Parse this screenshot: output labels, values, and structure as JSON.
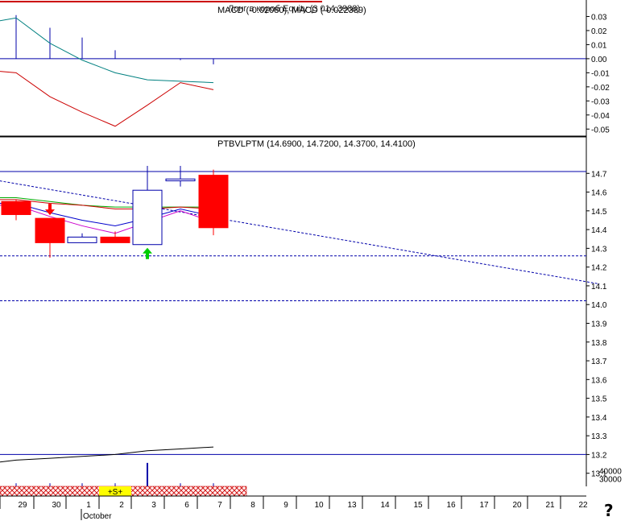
{
  "charts": {
    "macd_title": "MACD (-0.02080), MACD (-0.022389)",
    "overlay_title": "Лонг в короб Equity (3 014.3988)",
    "price_title": "PTBVLPTM (14.6900, 14.7200, 14.3700, 14.4100)",
    "signal_label": "+S+",
    "month_label": "October"
  },
  "help_glyph": "?",
  "colors": {
    "up": "#ffffff",
    "down": "#ff0000",
    "outline": "#0000aa",
    "hline": "#0000aa",
    "macd": "#008080",
    "signal": "#cc0000",
    "ma_green": "#00aa00",
    "ma_red": "#cc0000",
    "ma_blue": "#0000cc",
    "ma_magenta": "#cc00cc",
    "equity": "#000000",
    "band": "#ffeeee",
    "hatch": "#cc0000",
    "highlight": "#ffff00"
  },
  "chart_data": [
    {
      "type": "bar+line",
      "name": "MACD panel",
      "x": [
        "29",
        "30",
        "1",
        "2",
        "3",
        "6",
        "7"
      ],
      "ylim": [
        -0.055,
        0.04
      ],
      "yticks": [
        "0.03",
        "0.02",
        "0.01",
        "0.00",
        "-0.01",
        "-0.02",
        "-0.03",
        "-0.04",
        "-0.05"
      ],
      "yticks_values": [
        0.03,
        0.02,
        0.01,
        0.0,
        -0.01,
        -0.02,
        -0.03,
        -0.04,
        -0.05
      ],
      "series": [
        {
          "values": [
            0.029,
            0.011,
            -0.001,
            -0.01,
            -0.015,
            -0.016,
            -0.017
          ]
        },
        {
          "values": [
            -0.01,
            -0.027,
            -0.038,
            -0.048,
            -0.033,
            -0.017,
            -0.022
          ]
        },
        {
          "values": [
            0.031,
            0.022,
            0.015,
            0.006,
            0.0,
            -0.001,
            -0.004
          ]
        }
      ]
    },
    {
      "type": "candlestick",
      "name": "PTBVLPTM",
      "x": [
        "29",
        "30",
        "1",
        "2",
        "3",
        "6",
        "7"
      ],
      "ylim": [
        13.03,
        14.8
      ],
      "yticks": [
        "14.7",
        "14.6",
        "14.5",
        "14.4",
        "14.3",
        "14.2",
        "14.1",
        "14.0",
        "13.9",
        "13.8",
        "13.7",
        "13.6",
        "13.5",
        "13.4",
        "13.3",
        "13.2",
        "13.1"
      ],
      "yticks_values": [
        14.7,
        14.6,
        14.5,
        14.4,
        14.3,
        14.2,
        14.1,
        14.0,
        13.9,
        13.8,
        13.7,
        13.6,
        13.5,
        13.4,
        13.3,
        13.2,
        13.1
      ],
      "ohlc": [
        {
          "open": 14.55,
          "high": 14.56,
          "low": 14.45,
          "close": 14.48
        },
        {
          "open": 14.46,
          "high": 14.46,
          "low": 14.25,
          "close": 14.33
        },
        {
          "open": 14.33,
          "high": 14.38,
          "low": 14.33,
          "close": 14.36
        },
        {
          "open": 14.36,
          "high": 14.39,
          "low": 14.33,
          "close": 14.33
        },
        {
          "open": 14.32,
          "high": 14.74,
          "low": 14.32,
          "close": 14.61
        },
        {
          "open": 14.66,
          "high": 14.74,
          "low": 14.63,
          "close": 14.67
        },
        {
          "open": 14.69,
          "high": 14.72,
          "low": 14.37,
          "close": 14.41
        }
      ],
      "lines": [
        {
          "values": [
            14.57,
            14.55,
            14.53,
            14.52,
            14.52,
            14.52,
            14.52
          ]
        },
        {
          "values": [
            14.56,
            14.54,
            14.53,
            14.51,
            14.51,
            14.52,
            14.51
          ]
        },
        {
          "values": [
            14.54,
            14.49,
            14.45,
            14.42,
            14.46,
            14.51,
            14.47
          ]
        },
        {
          "values": [
            14.53,
            14.47,
            14.42,
            14.38,
            14.44,
            14.5,
            14.44
          ]
        }
      ],
      "levels": [
        14.71,
        14.26,
        14.02,
        13.2
      ],
      "trendline": {
        "x1": -0.5,
        "y1": 14.66,
        "x2": 17.75,
        "y2": 14.11
      },
      "equity": [
        13.17,
        13.18,
        13.19,
        13.2,
        13.22,
        13.23,
        13.24
      ],
      "buy_index": 4,
      "sell_index": 1
    },
    {
      "type": "bar",
      "name": "Volume",
      "x": [
        "29",
        "30",
        "1",
        "2",
        "3",
        "6",
        "7"
      ],
      "ylim": [
        20000,
        55000
      ],
      "yticks": [
        "40000",
        "30000"
      ],
      "yticks_values": [
        40000,
        30000
      ],
      "values": [
        24000,
        24000,
        24000,
        24000,
        50000,
        24000,
        24000
      ]
    }
  ],
  "axis": {
    "dates": [
      "29",
      "30",
      "1",
      "2",
      "3",
      "6",
      "7",
      "8",
      "9",
      "10",
      "13",
      "14",
      "15",
      "16",
      "17",
      "20",
      "21",
      "22"
    ]
  }
}
